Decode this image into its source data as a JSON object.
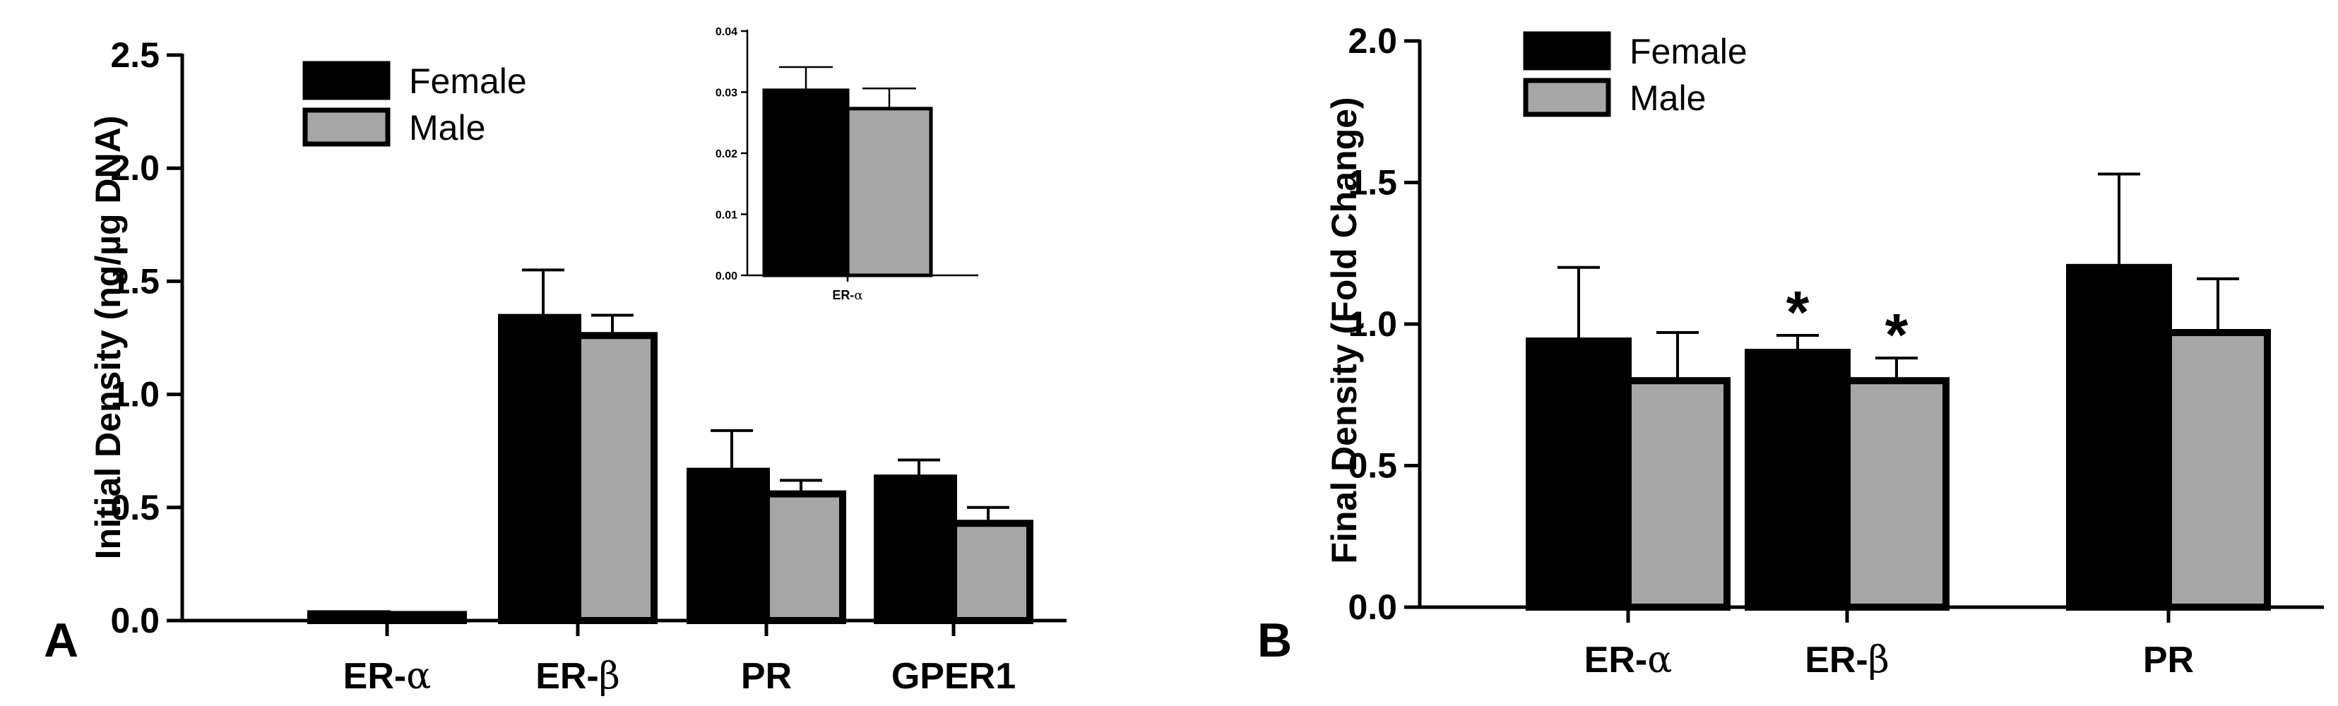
{
  "colors": {
    "female": "#000000",
    "male": "#a6a6a6",
    "axis": "#000000"
  },
  "chart_data": [
    {
      "panel": "A",
      "type": "bar",
      "ylabel": "Initial Density (ng/µg DNA)",
      "ylim": [
        0,
        2.5
      ],
      "yticks": [
        "0.0",
        "0.5",
        "1.0",
        "1.5",
        "2.0",
        "2.5"
      ],
      "categories": [
        {
          "base": "ER-",
          "greek": "α"
        },
        {
          "base": "ER-",
          "greek": "β"
        },
        {
          "base": "PR",
          "greek": ""
        },
        {
          "base": "GPER1",
          "greek": ""
        }
      ],
      "legend": [
        "Female",
        "Male"
      ],
      "legend_position": "top-left",
      "series": [
        {
          "name": "Female",
          "values": [
            0.03,
            1.34,
            0.66,
            0.63
          ],
          "errors": [
            0.004,
            0.21,
            0.18,
            0.08
          ]
        },
        {
          "name": "Male",
          "values": [
            0.027,
            1.26,
            0.56,
            0.43
          ],
          "errors": [
            0.003,
            0.09,
            0.06,
            0.07
          ]
        }
      ],
      "inset": {
        "type": "bar",
        "ylim": [
          0,
          0.04
        ],
        "yticks": [
          "0.00",
          "0.01",
          "0.02",
          "0.03",
          "0.04"
        ],
        "category": {
          "base": "ER-",
          "greek": "α"
        },
        "series": [
          {
            "name": "Female",
            "value": 0.0303,
            "error": 0.0038
          },
          {
            "name": "Male",
            "value": 0.0273,
            "error": 0.0033
          }
        ]
      }
    },
    {
      "panel": "B",
      "type": "bar",
      "ylabel": "Final Density (Fold Change)",
      "ylim": [
        0,
        2.0
      ],
      "yticks": [
        "0.0",
        "0.5",
        "1.0",
        "1.5",
        "2.0"
      ],
      "categories": [
        {
          "base": "ER-",
          "greek": "α"
        },
        {
          "base": "ER-",
          "greek": "β"
        },
        {
          "base": "PR",
          "greek": ""
        }
      ],
      "legend": [
        "Female",
        "Male"
      ],
      "legend_position": "top-left",
      "series": [
        {
          "name": "Female",
          "values": [
            0.94,
            0.9,
            1.2
          ],
          "errors": [
            0.26,
            0.06,
            0.33
          ]
        },
        {
          "name": "Male",
          "values": [
            0.8,
            0.8,
            0.97
          ],
          "errors": [
            0.17,
            0.08,
            0.19
          ]
        }
      ],
      "annotations": [
        {
          "text": "*",
          "category_index": 1,
          "series": "Female"
        },
        {
          "text": "*",
          "category_index": 1,
          "series": "Male"
        }
      ]
    }
  ]
}
